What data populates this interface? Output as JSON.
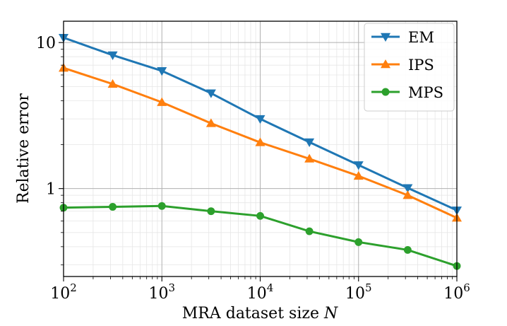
{
  "chart_data": {
    "type": "line",
    "xlabel": "MRA dataset size",
    "xlabel_var": "N",
    "ylabel": "Relative error",
    "x_scale": "log",
    "y_scale": "log",
    "xlim": [
      100,
      1000000
    ],
    "ylim": [
      0.25,
      14
    ],
    "grid": true,
    "legend_position": "top-right",
    "x_ticks": [
      {
        "value": 100,
        "base": "10",
        "exp": "2"
      },
      {
        "value": 1000,
        "base": "10",
        "exp": "3"
      },
      {
        "value": 10000,
        "base": "10",
        "exp": "4"
      },
      {
        "value": 100000,
        "base": "10",
        "exp": "5"
      },
      {
        "value": 1000000,
        "base": "10",
        "exp": "6"
      }
    ],
    "y_ticks": [
      {
        "value": 1,
        "label": "1"
      },
      {
        "value": 10,
        "label": "10"
      }
    ],
    "x": [
      100,
      316,
      1000,
      3162,
      10000,
      31623,
      100000,
      316228,
      1000000
    ],
    "series": [
      {
        "name": "EM",
        "color": "#1f77b4",
        "marker": "triangle-down",
        "values": [
          10.8,
          8.2,
          6.4,
          4.5,
          3.0,
          2.08,
          1.45,
          1.01,
          0.71
        ]
      },
      {
        "name": "IPS",
        "color": "#ff7f0e",
        "marker": "triangle-up",
        "values": [
          6.7,
          5.2,
          3.9,
          2.8,
          2.07,
          1.6,
          1.22,
          0.9,
          0.63
        ]
      },
      {
        "name": "MPS",
        "color": "#2ca02c",
        "marker": "circle",
        "values": [
          0.74,
          0.75,
          0.76,
          0.7,
          0.65,
          0.51,
          0.43,
          0.38,
          0.295
        ]
      }
    ]
  }
}
